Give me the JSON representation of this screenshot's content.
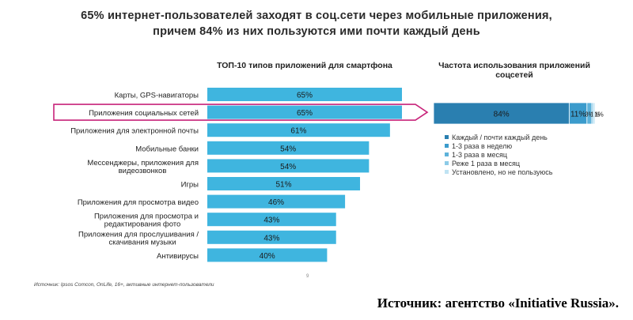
{
  "headline": {
    "line1": "65% интернет-пользователей заходят в соц.сети через мобильные приложения,",
    "line2": "причем 84% из них пользуются ими почти каждый день"
  },
  "footer": {
    "source_small": "Источник: Ipsos Comcon, OnLife, 16+, активные интернет-пользователи",
    "page_number": "9",
    "source_big": "Источник: агентство «Initiative Russia»."
  },
  "colors": {
    "bar": "#3fb5df",
    "highlight": "#c8237a",
    "stack": [
      "#2a7fb0",
      "#3b9bcc",
      "#5db2da",
      "#8ccbe8",
      "#bfe3f3"
    ]
  },
  "chart_data": [
    {
      "type": "bar",
      "orientation": "horizontal",
      "title": "ТОП-10 типов приложений для смартфона",
      "categories": [
        "Карты, GPS-навигаторы",
        "Приложения социальных сетей",
        "Приложения для электронной почты",
        "Мобильные банки",
        "Мессенджеры, приложения для видеозвонков",
        "Игры",
        "Приложения для просмотра видео",
        "Приложения для просмотра и редактирования фото",
        "Приложения для прослушивания / скачивания музыки",
        "Антивирусы"
      ],
      "values": [
        65,
        65,
        61,
        54,
        54,
        51,
        46,
        43,
        43,
        40
      ],
      "value_labels": [
        "65%",
        "65%",
        "61%",
        "54%",
        "54%",
        "51%",
        "46%",
        "43%",
        "43%",
        "40%"
      ],
      "highlighted_category": "Приложения социальных сетей",
      "xlim": [
        0,
        65
      ]
    },
    {
      "type": "bar",
      "orientation": "horizontal",
      "stacked": true,
      "title": "Частота использования приложений соцсетей",
      "series": [
        {
          "name": "Каждый / почти каждый день",
          "value": 84,
          "label": "84%"
        },
        {
          "name": "1-3 раза в неделю",
          "value": 11,
          "label": "11%"
        },
        {
          "name": "1-3 раза в месяц",
          "value": 3,
          "label": "3%"
        },
        {
          "name": "Реже 1 раза в месяц",
          "value": 1,
          "label": "1%"
        },
        {
          "name": "Установлено, но не пользуюсь",
          "value": 1,
          "label": "1%"
        }
      ],
      "legend_position": "bottom"
    }
  ]
}
